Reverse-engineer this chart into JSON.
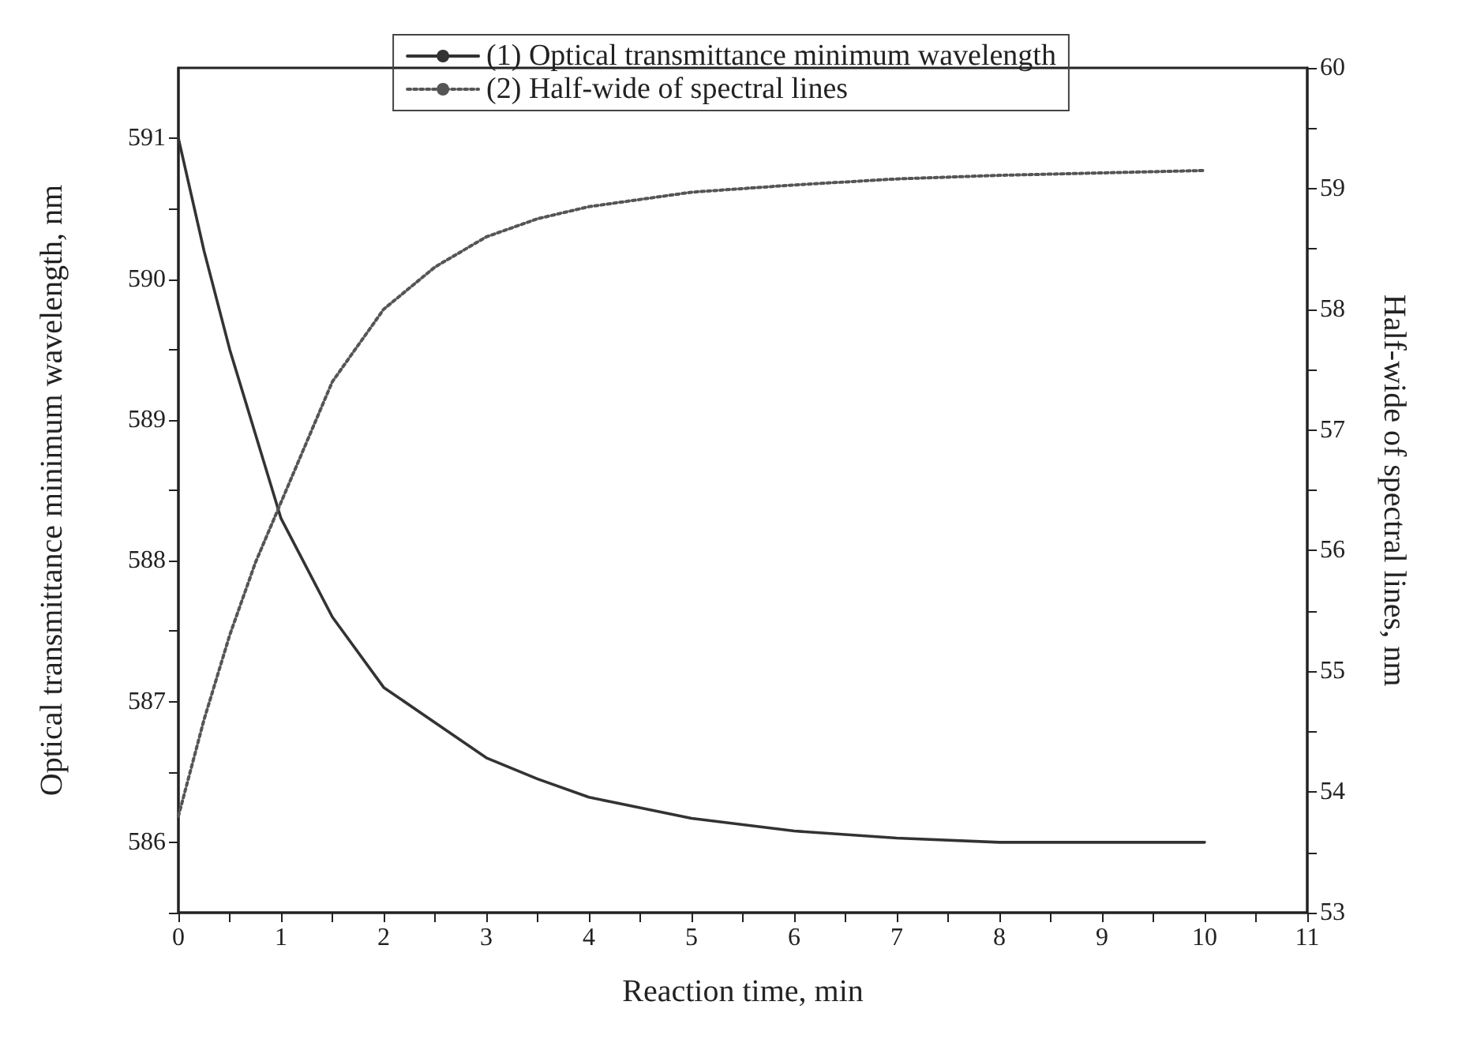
{
  "chart_data": {
    "type": "line",
    "xlabel": "Reaction time, min",
    "ylabel": "Optical transmittance minimum wavelength, nm",
    "y2label": "Half-wide of spectral lines, nm",
    "legend": "top",
    "grid": false,
    "marker": "none",
    "xlim": [
      0,
      11
    ],
    "xticks": [
      0,
      {
        "value": 0.5,
        "label": null
      },
      1,
      {
        "value": 1.5,
        "label": null
      },
      2,
      {
        "value": 2.5,
        "label": null
      },
      3,
      {
        "value": 3.5,
        "label": null
      },
      4,
      {
        "value": 4.5,
        "label": null
      },
      5,
      {
        "value": 5.5,
        "label": null
      },
      6,
      {
        "value": 6.5,
        "label": null
      },
      7,
      {
        "value": 7.5,
        "label": null
      },
      8,
      {
        "value": 8.5,
        "label": null
      },
      9,
      {
        "value": 9.5,
        "label": null
      },
      10,
      {
        "value": 10.5,
        "label": null
      },
      11
    ],
    "ylim": [
      585.5,
      591.5
    ],
    "yticks": [
      {
        "value": 585.5,
        "label": null
      },
      586,
      {
        "value": 586.5,
        "label": null
      },
      587,
      {
        "value": 587.5,
        "label": null
      },
      588,
      {
        "value": 588.5,
        "label": null
      },
      589,
      {
        "value": 589.5,
        "label": null
      },
      590,
      {
        "value": 590.5,
        "label": null
      },
      591
    ],
    "y2lim": [
      53,
      60
    ],
    "y2ticks": [
      53,
      {
        "value": 53.5,
        "label": null
      },
      54,
      {
        "value": 54.5,
        "label": null
      },
      55,
      {
        "value": 55.5,
        "label": null
      },
      56,
      {
        "value": 56.5,
        "label": null
      },
      57,
      {
        "value": 57.5,
        "label": null
      },
      58,
      {
        "value": 58.5,
        "label": null
      },
      59,
      {
        "value": 59.5,
        "label": null
      },
      60
    ],
    "x": [
      0,
      0.25,
      0.5,
      0.75,
      1,
      1.5,
      2,
      2.5,
      3,
      3.5,
      4,
      5,
      6,
      7,
      8,
      9,
      10
    ],
    "series": [
      {
        "name": "(1) Optical transmittance minimum wavelength",
        "color": "#333333",
        "line_style": "solid",
        "values": [
          591,
          590.2,
          589.5,
          588.9,
          588.3,
          587.6,
          587.1,
          586.85,
          586.6,
          586.45,
          586.32,
          586.17,
          586.08,
          586.03,
          586.0,
          586.0,
          586.0
        ]
      },
      {
        "name": "(2) Half-wide of spectral lines",
        "color": "#555555",
        "line_style": "dotted",
        "axis": "y2",
        "values": [
          53.8,
          54.6,
          55.3,
          55.9,
          56.4,
          57.4,
          58.0,
          58.35,
          58.6,
          58.75,
          58.85,
          58.97,
          59.03,
          59.08,
          59.11,
          59.13,
          59.15
        ]
      }
    ]
  }
}
